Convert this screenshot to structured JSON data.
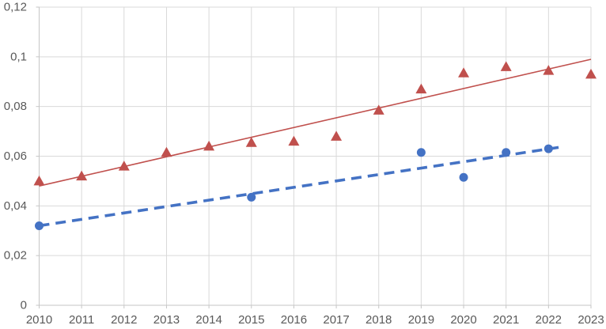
{
  "chart_data": {
    "type": "scatter",
    "title": "",
    "legend": "none",
    "grid": true,
    "x_axis": {
      "min": 2010,
      "max": 2023,
      "ticks": [
        {
          "value": 2010,
          "label": "2010"
        },
        {
          "value": 2011,
          "label": "2011"
        },
        {
          "value": 2012,
          "label": "2012"
        },
        {
          "value": 2013,
          "label": "2013"
        },
        {
          "value": 2014,
          "label": "2014"
        },
        {
          "value": 2015,
          "label": "2015"
        },
        {
          "value": 2016,
          "label": "2016"
        },
        {
          "value": 2017,
          "label": "2017"
        },
        {
          "value": 2018,
          "label": "2018"
        },
        {
          "value": 2019,
          "label": "2019"
        },
        {
          "value": 2020,
          "label": "2020"
        },
        {
          "value": 2021,
          "label": "2021"
        },
        {
          "value": 2022,
          "label": "2022"
        },
        {
          "value": 2023,
          "label": "2023"
        }
      ]
    },
    "y_axis": {
      "min": 0,
      "max": 0.12,
      "ticks": [
        {
          "value": 0,
          "label": "0"
        },
        {
          "value": 0.02,
          "label": "0,02"
        },
        {
          "value": 0.04,
          "label": "0,04"
        },
        {
          "value": 0.06,
          "label": "0,06"
        },
        {
          "value": 0.08,
          "label": "0,08"
        },
        {
          "value": 0.1,
          "label": "0,1"
        },
        {
          "value": 0.12,
          "label": "0,12"
        }
      ]
    },
    "series": [
      {
        "name": "red-triangle-series",
        "marker": "triangle",
        "color": "#C0504D",
        "points": [
          {
            "x": 2010,
            "y": 0.05
          },
          {
            "x": 2011,
            "y": 0.052
          },
          {
            "x": 2012,
            "y": 0.056
          },
          {
            "x": 2013,
            "y": 0.0615
          },
          {
            "x": 2014,
            "y": 0.064
          },
          {
            "x": 2015,
            "y": 0.0655
          },
          {
            "x": 2016,
            "y": 0.066
          },
          {
            "x": 2017,
            "y": 0.068
          },
          {
            "x": 2018,
            "y": 0.0785
          },
          {
            "x": 2019,
            "y": 0.087
          },
          {
            "x": 2020,
            "y": 0.0935
          },
          {
            "x": 2021,
            "y": 0.096
          },
          {
            "x": 2022,
            "y": 0.0945
          },
          {
            "x": 2023,
            "y": 0.093
          }
        ]
      },
      {
        "name": "blue-circle-series",
        "marker": "circle",
        "color": "#4472C4",
        "points": [
          {
            "x": 2010,
            "y": 0.032
          },
          {
            "x": 2015,
            "y": 0.0435
          },
          {
            "x": 2019,
            "y": 0.0615
          },
          {
            "x": 2020,
            "y": 0.0515
          },
          {
            "x": 2021,
            "y": 0.0615
          },
          {
            "x": 2022,
            "y": 0.063
          }
        ]
      }
    ],
    "trendlines": [
      {
        "name": "red-linear-trendline",
        "color": "#C0504D",
        "style": "solid",
        "width": 1.6,
        "x1": 2010,
        "y1": 0.048,
        "x2": 2023,
        "y2": 0.099
      },
      {
        "name": "blue-dashed-trendline",
        "color": "#4472C4",
        "style": "dashed",
        "dash": "13 8",
        "width": 3.6,
        "x1": 2010,
        "y1": 0.032,
        "x2": 2022.3,
        "y2": 0.0637
      }
    ],
    "colors": {
      "gridline": "#D9D9D9",
      "axis_line": "#C6C6C6",
      "tick_label": "#595959"
    }
  }
}
